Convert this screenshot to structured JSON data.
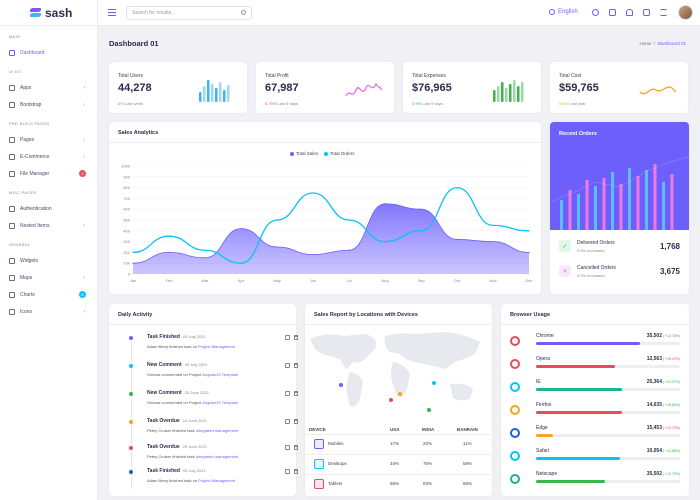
{
  "app": {
    "name": "sash"
  },
  "sidebar": {
    "sections": [
      {
        "title": "MAIN",
        "items": [
          {
            "label": "Dashboard",
            "active": true
          }
        ]
      },
      {
        "title": "UI KIT",
        "items": [
          {
            "label": "Apps"
          },
          {
            "label": "Bootstrap"
          }
        ]
      },
      {
        "title": "PRE-BUILD PAGES",
        "items": [
          {
            "label": "Pages"
          },
          {
            "label": "E-Commerce"
          },
          {
            "label": "File Manager",
            "badge": "2"
          }
        ]
      },
      {
        "title": "MISC PAGES",
        "items": [
          {
            "label": "Authentication"
          },
          {
            "label": "Nested Items"
          }
        ]
      },
      {
        "title": "GENERAL",
        "items": [
          {
            "label": "Widgets"
          },
          {
            "label": "Maps"
          },
          {
            "label": "Charts",
            "badge": "6"
          },
          {
            "label": "Icons"
          }
        ]
      }
    ]
  },
  "topbar": {
    "search_placeholder": "Search for results...",
    "language": "English"
  },
  "page": {
    "title": "Dashboard 01",
    "breadcrumb": {
      "home": "Home",
      "current": "Dashboard 01"
    }
  },
  "stats": [
    {
      "label": "Total Users",
      "value": "44,278",
      "change": "5%",
      "period": "Last week",
      "color": "#3cb6f0",
      "change_color": "#3cb6f0"
    },
    {
      "label": "Total Profit",
      "value": "67,987",
      "change": "0.75%",
      "period": "Last 6 days",
      "color": "#f06bf0",
      "change_color": "#e84a5f"
    },
    {
      "label": "Total Expenses",
      "value": "$76,965",
      "change": "0.9%",
      "period": "Last 9 days",
      "color": "#3ab54a",
      "change_color": "#3ab54a"
    },
    {
      "label": "Total Cost",
      "value": "$59,765",
      "change": "0.6%",
      "period": "Last year",
      "color": "#f5a623",
      "change_color": "#f5a623"
    }
  ],
  "sales": {
    "title": "Sales Analytics",
    "chart_data": {
      "type": "area",
      "categories": [
        "Jan",
        "Feb",
        "Mar",
        "Apr",
        "May",
        "Jun",
        "Jul",
        "Aug",
        "Sep",
        "Oct",
        "Nov",
        "Dec"
      ],
      "ylim": [
        0,
        1000
      ],
      "yticks": [
        0,
        100,
        200,
        300,
        400,
        500,
        600,
        700,
        800,
        900,
        1000
      ],
      "series": [
        {
          "name": "Total Sales",
          "color": "#6c5ffc",
          "values": [
            100,
            200,
            150,
            420,
            250,
            180,
            220,
            650,
            600,
            320,
            300,
            200
          ]
        },
        {
          "name": "Total Orders",
          "color": "#05c3fb",
          "values": [
            200,
            350,
            220,
            100,
            500,
            750,
            500,
            300,
            400,
            800,
            450,
            400
          ]
        }
      ]
    }
  },
  "recent": {
    "title": "Recent Orders",
    "rows": [
      {
        "label": "Delivered Orders",
        "sub": "5.6% increased",
        "value": "1,768",
        "icon_color": "#3ab54a",
        "icon_bg": "#e3f7e6",
        "glyph": "✓"
      },
      {
        "label": "Cancelled Orders",
        "sub": "2.2% increased",
        "value": "3,675",
        "icon_color": "#f06bf0",
        "icon_bg": "#fce8fc",
        "glyph": "✕"
      }
    ]
  },
  "activity": {
    "title": "Daily Activity",
    "items": [
      {
        "title": "Task Finished",
        "date": "09 July 2021",
        "text": "Adam Berry finished task on",
        "link": "Project Management",
        "color": "#6c5ffc"
      },
      {
        "title": "New Comment",
        "date": "05 July 2021",
        "text": "Victoria commented on Project",
        "link": "AngularJS Template",
        "color": "#05c3fb"
      },
      {
        "title": "New Comment",
        "date": "25 June 2021",
        "text": "Victoria commented on Project",
        "link": "AngularJS Template",
        "color": "#3ab54a"
      },
      {
        "title": "Task Overdue",
        "date": "14 June 2021",
        "text": "Petey Cruiser finished task",
        "link": "Integrated management",
        "color": "#f5a623"
      },
      {
        "title": "Task Overdue",
        "date": "29 June 2021",
        "text": "Petey Cruiser finished task",
        "link": "Integrated management",
        "color": "#e84a5f"
      },
      {
        "title": "Task Finished",
        "date": "09 July 2021",
        "text": "Adam Berry finished task on",
        "link": "Project Management",
        "color": "#1e5fd8"
      }
    ]
  },
  "report": {
    "title": "Sales Report by Locations with Devices",
    "columns": [
      "DEVICE",
      "USA",
      "INDIA",
      "BAHRAIN"
    ],
    "rows": [
      {
        "device": "Mobiles",
        "usa": "17%",
        "india": "22%",
        "bahrain": "11%",
        "color": "#6c5ffc",
        "bg": "#ecebff"
      },
      {
        "device": "Desktops",
        "usa": "34%",
        "india": "76%",
        "bahrain": "58%",
        "color": "#05c3fb",
        "bg": "#e2f7fe"
      },
      {
        "device": "Tablets",
        "usa": "56%",
        "india": "83%",
        "bahrain": "66%",
        "color": "#e84a5f",
        "bg": "#fde8eb"
      }
    ]
  },
  "browser": {
    "title": "Browser Usage",
    "rows": [
      {
        "name": "Chrome",
        "value": "35,502",
        "pct": "( +12.75%)",
        "trend_color": "#3ab54a",
        "bar_color": "#6c5ffc",
        "fill": 0.72,
        "icon_color": "#e84a5f"
      },
      {
        "name": "Opera",
        "value": "12,563",
        "pct": "( +15.12%)",
        "trend_color": "#e84a5f",
        "bar_color": "#e84a5f",
        "fill": 0.55,
        "icon_color": "#e84a5f"
      },
      {
        "name": "IE",
        "value": "25,364",
        "pct": "( +24.37%)",
        "trend_color": "#3ab54a",
        "bar_color": "#1ab394",
        "fill": 0.6,
        "icon_color": "#05c3fb"
      },
      {
        "name": "Firefox",
        "value": "14,635",
        "pct": "( +15.63%)",
        "trend_color": "#3ab54a",
        "bar_color": "#e84a5f",
        "fill": 0.6,
        "icon_color": "#f5a623"
      },
      {
        "name": "Edge",
        "value": "15,453",
        "pct": "( +23.70%)",
        "trend_color": "#e84a5f",
        "bar_color": "#f5a623",
        "fill": 0.12,
        "icon_color": "#1e5fd8"
      },
      {
        "name": "Safari",
        "value": "10,054",
        "pct": "( +11.58%)",
        "trend_color": "#3ab54a",
        "bar_color": "#05c3fb",
        "fill": 0.58,
        "icon_color": "#05c3fb"
      },
      {
        "name": "Netscape",
        "value": "35,502",
        "pct": "( +12.75%)",
        "trend_color": "#3ab54a",
        "bar_color": "#3ab54a",
        "fill": 0.48,
        "icon_color": "#1ab394"
      }
    ]
  }
}
